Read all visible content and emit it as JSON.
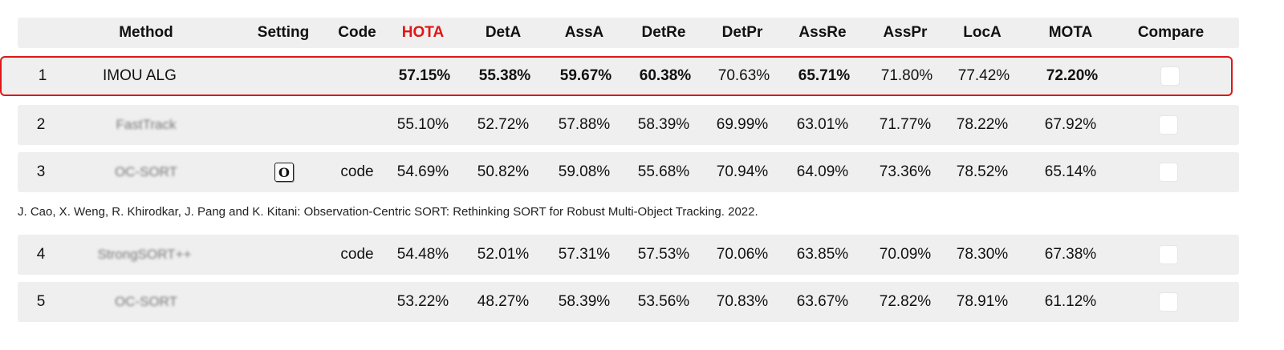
{
  "header": {
    "method": "Method",
    "setting": "Setting",
    "code": "Code",
    "hota": "HOTA",
    "deta": "DetA",
    "assa": "AssA",
    "detre": "DetRe",
    "detpr": "DetPr",
    "assre": "AssRe",
    "asspr": "AssPr",
    "loca": "LocA",
    "mota": "MOTA",
    "compare": "Compare"
  },
  "rows": [
    {
      "rank": "1",
      "method": "IMOU ALG",
      "setting": "",
      "code": "",
      "hota": "57.15%",
      "deta": "55.38%",
      "assa": "59.67%",
      "detre": "60.38%",
      "detpr": "70.63%",
      "assre": "65.71%",
      "asspr": "71.80%",
      "loca": "77.42%",
      "mota": "72.20%"
    },
    {
      "rank": "2",
      "method": "FastTrack",
      "setting": "",
      "code": "",
      "hota": "55.10%",
      "deta": "52.72%",
      "assa": "57.88%",
      "detre": "58.39%",
      "detpr": "69.99%",
      "assre": "63.01%",
      "asspr": "71.77%",
      "loca": "78.22%",
      "mota": "67.92%"
    },
    {
      "rank": "3",
      "method": "OC-SORT",
      "setting": "O",
      "code": "code",
      "hota": "54.69%",
      "deta": "50.82%",
      "assa": "59.08%",
      "detre": "55.68%",
      "detpr": "70.94%",
      "assre": "64.09%",
      "asspr": "73.36%",
      "loca": "78.52%",
      "mota": "65.14%"
    },
    {
      "rank": "4",
      "method": "StrongSORT++",
      "setting": "",
      "code": "code",
      "hota": "54.48%",
      "deta": "52.01%",
      "assa": "57.31%",
      "detre": "57.53%",
      "detpr": "70.06%",
      "assre": "63.85%",
      "asspr": "70.09%",
      "loca": "78.30%",
      "mota": "67.38%"
    },
    {
      "rank": "5",
      "method": "OC-SORT",
      "setting": "",
      "code": "",
      "hota": "53.22%",
      "deta": "48.27%",
      "assa": "58.39%",
      "detre": "53.56%",
      "detpr": "70.83%",
      "assre": "63.67%",
      "asspr": "72.82%",
      "loca": "78.91%",
      "mota": "61.12%"
    }
  ],
  "citation": "J. Cao, X. Weng, R. Khirodkar, J. Pang and K. Kitani: Observation-Centric SORT: Rethinking SORT for Robust Multi-Object Tracking. 2022.",
  "colors": {
    "highlight": "#e01616",
    "row_bg": "#efefef"
  }
}
